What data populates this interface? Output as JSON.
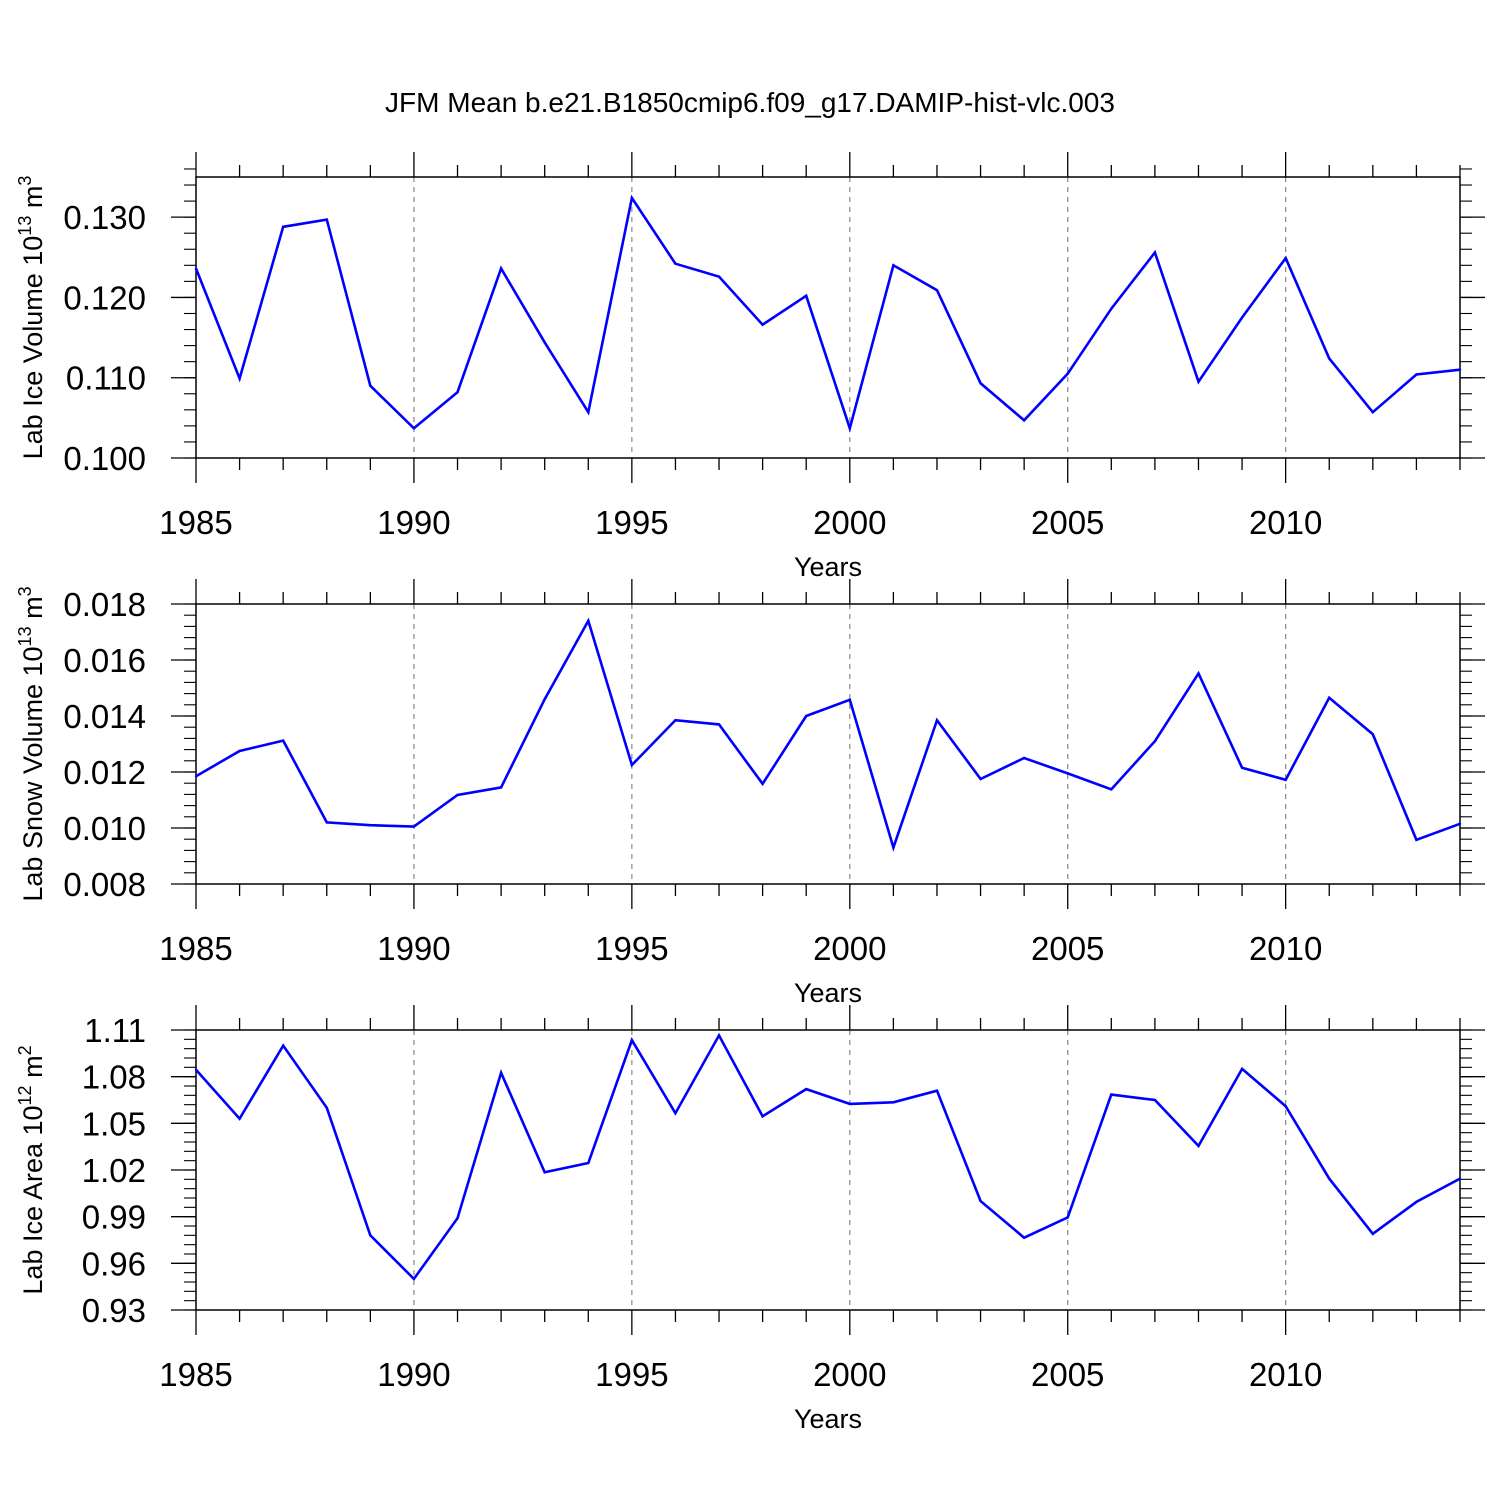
{
  "figure": {
    "title": "JFM Mean b.e21.B1850cmip6.f09_g17.DAMIP-hist-vlc.003",
    "line_color": "#0000ff",
    "grid_color": "#888888"
  },
  "chart_data": [
    {
      "type": "line",
      "ylabel_main": "Lab Ice Volume 10",
      "ylabel_exp": "13",
      "ylabel_unit": " m",
      "ylabel_unit_exp": "3",
      "xlabel": "Years",
      "xlim": [
        1985,
        2014
      ],
      "ylim": [
        0.1,
        0.135
      ],
      "x_ticks": [
        1985,
        1990,
        1995,
        2000,
        2005,
        2010
      ],
      "x_tick_labels": [
        "1985",
        "1990",
        "1995",
        "2000",
        "2005",
        "2010"
      ],
      "y_ticks": [
        0.1,
        0.11,
        0.12,
        0.13
      ],
      "y_tick_labels": [
        "0.100",
        "0.110",
        "0.120",
        "0.130"
      ],
      "y_minor_step": 0.002,
      "series": [
        {
          "name": "Lab Ice Volume",
          "x": [
            1985,
            1986,
            1987,
            1988,
            1989,
            1990,
            1991,
            1992,
            1993,
            1994,
            1995,
            1996,
            1997,
            1998,
            1999,
            2000,
            2001,
            2002,
            2003,
            2004,
            2005,
            2006,
            2007,
            2008,
            2009,
            2010,
            2011,
            2012,
            2013,
            2014
          ],
          "values": [
            0.1236,
            0.1099,
            0.1288,
            0.1297,
            0.109,
            0.1037,
            0.1082,
            0.1236,
            0.1144,
            0.1057,
            0.1324,
            0.1242,
            0.1226,
            0.1166,
            0.1202,
            0.1037,
            0.124,
            0.1209,
            0.1093,
            0.1047,
            0.1105,
            0.1186,
            0.1256,
            0.1095,
            0.1175,
            0.1249,
            0.1124,
            0.1057,
            0.1104,
            0.111
          ]
        }
      ]
    },
    {
      "type": "line",
      "ylabel_main": "Lab Snow Volume 10",
      "ylabel_exp": "13",
      "ylabel_unit": " m",
      "ylabel_unit_exp": "3",
      "xlabel": "Years",
      "xlim": [
        1985,
        2014
      ],
      "ylim": [
        0.008,
        0.018
      ],
      "x_ticks": [
        1985,
        1990,
        1995,
        2000,
        2005,
        2010
      ],
      "x_tick_labels": [
        "1985",
        "1990",
        "1995",
        "2000",
        "2005",
        "2010"
      ],
      "y_ticks": [
        0.008,
        0.01,
        0.012,
        0.014,
        0.016,
        0.018
      ],
      "y_tick_labels": [
        "0.008",
        "0.010",
        "0.012",
        "0.014",
        "0.016",
        "0.018"
      ],
      "y_minor_step": 0.0004,
      "series": [
        {
          "name": "Lab Snow Volume",
          "x": [
            1985,
            1986,
            1987,
            1988,
            1989,
            1990,
            1991,
            1992,
            1993,
            1994,
            1995,
            1996,
            1997,
            1998,
            1999,
            2000,
            2001,
            2002,
            2003,
            2004,
            2005,
            2006,
            2007,
            2008,
            2009,
            2010,
            2011,
            2012,
            2013,
            2014
          ],
          "values": [
            0.01185,
            0.01275,
            0.01312,
            0.0102,
            0.0101,
            0.01005,
            0.01118,
            0.01145,
            0.0146,
            0.0174,
            0.01225,
            0.01385,
            0.0137,
            0.01158,
            0.014,
            0.01458,
            0.0093,
            0.01385,
            0.01175,
            0.0125,
            0.01195,
            0.01138,
            0.0131,
            0.01552,
            0.01215,
            0.01172,
            0.01465,
            0.01335,
            0.00958,
            0.01015
          ]
        }
      ]
    },
    {
      "type": "line",
      "ylabel_main": "Lab Ice Area 10",
      "ylabel_exp": "12",
      "ylabel_unit": " m",
      "ylabel_unit_exp": "2",
      "xlabel": "Years",
      "xlim": [
        1985,
        2014
      ],
      "ylim": [
        0.93,
        1.11
      ],
      "x_ticks": [
        1985,
        1990,
        1995,
        2000,
        2005,
        2010
      ],
      "x_tick_labels": [
        "1985",
        "1990",
        "1995",
        "2000",
        "2005",
        "2010"
      ],
      "y_ticks": [
        0.93,
        0.96,
        0.99,
        1.02,
        1.05,
        1.08,
        1.11
      ],
      "y_tick_labels": [
        "0.93",
        "0.96",
        "0.99",
        "1.02",
        "1.05",
        "1.08",
        "1.11"
      ],
      "y_minor_step": 0.006,
      "series": [
        {
          "name": "Lab Ice Area",
          "x": [
            1985,
            1986,
            1987,
            1988,
            1989,
            1990,
            1991,
            1992,
            1993,
            1994,
            1995,
            1996,
            1997,
            1998,
            1999,
            2000,
            2001,
            2002,
            2003,
            2004,
            2005,
            2006,
            2007,
            2008,
            2009,
            2010,
            2011,
            2012,
            2013,
            2014
          ],
          "values": [
            1.0845,
            1.053,
            1.1,
            1.06,
            0.978,
            0.95,
            0.989,
            1.0825,
            1.0185,
            1.0245,
            1.1035,
            1.0565,
            1.1065,
            1.0545,
            1.072,
            1.0625,
            1.0635,
            1.071,
            1.0,
            0.9765,
            0.9895,
            1.0685,
            1.065,
            1.0355,
            1.085,
            1.061,
            1.0145,
            0.979,
            0.9995,
            1.0145
          ]
        }
      ]
    }
  ]
}
